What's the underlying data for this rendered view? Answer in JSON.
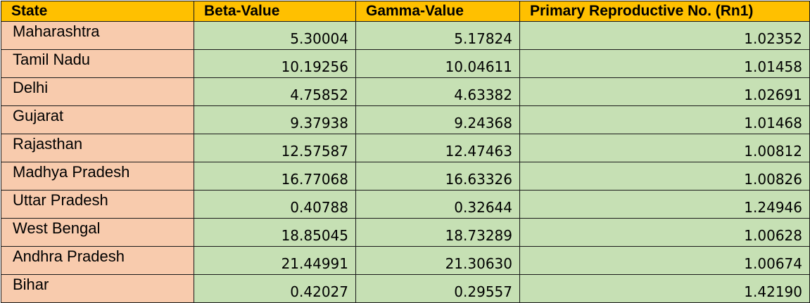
{
  "table": {
    "headers": [
      "State",
      "Beta-Value",
      "Gamma-Value",
      "Primary Reproductive No. (Rn1)"
    ],
    "rows": [
      {
        "state": "Maharashtra",
        "beta": "5.30004",
        "gamma": "5.17824",
        "rn1": "1.02352"
      },
      {
        "state": "Tamil Nadu",
        "beta": "10.19256",
        "gamma": "10.04611",
        "rn1": "1.01458"
      },
      {
        "state": "Delhi",
        "beta": "4.75852",
        "gamma": "4.63382",
        "rn1": "1.02691"
      },
      {
        "state": "Gujarat",
        "beta": "9.37938",
        "gamma": "9.24368",
        "rn1": "1.01468"
      },
      {
        "state": "Rajasthan",
        "beta": "12.57587",
        "gamma": "12.47463",
        "rn1": "1.00812"
      },
      {
        "state": "Madhya Pradesh",
        "beta": "16.77068",
        "gamma": "16.63326",
        "rn1": "1.00826"
      },
      {
        "state": "Uttar Pradesh",
        "beta": "0.40788",
        "gamma": "0.32644",
        "rn1": "1.24946"
      },
      {
        "state": "West Bengal",
        "beta": "18.85045",
        "gamma": "18.73289",
        "rn1": "1.00628"
      },
      {
        "state": "Andhra Pradesh",
        "beta": "21.44991",
        "gamma": "21.30630",
        "rn1": "1.00674"
      },
      {
        "state": "Bihar",
        "beta": "0.42027",
        "gamma": "0.29557",
        "rn1": "1.42190"
      }
    ]
  },
  "colors": {
    "header_bg": "#ffc000",
    "state_bg": "#f8cbad",
    "value_bg": "#c6e0b4",
    "border": "#1a1a1a"
  }
}
